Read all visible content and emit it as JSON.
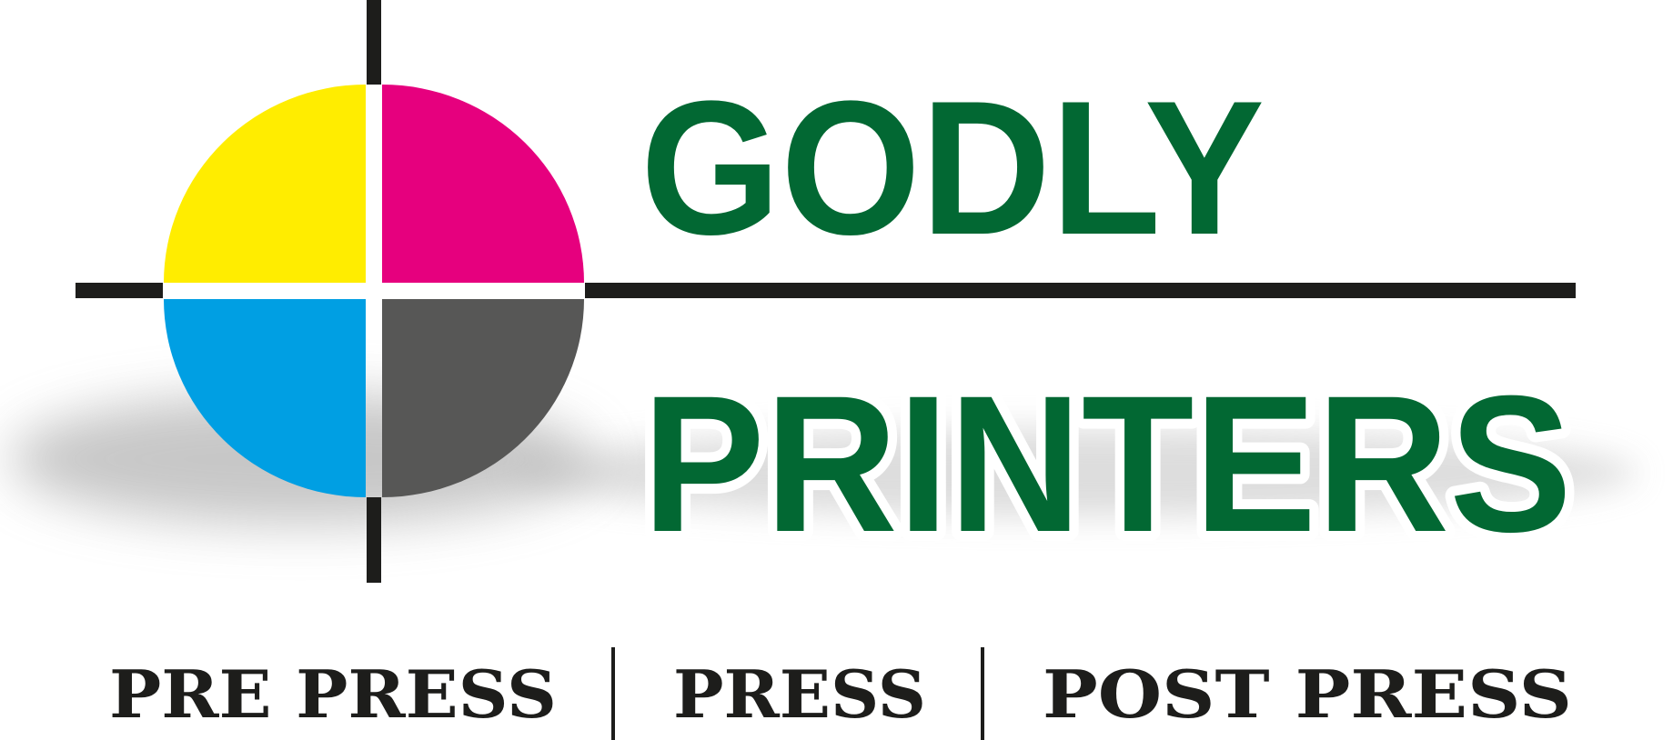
{
  "logo": {
    "line1": "GODLY",
    "line2": "PRINTERS",
    "tagline": {
      "left": "PRE PRESS",
      "middle": "PRESS",
      "right": "POST PRESS"
    }
  },
  "colors": {
    "brand_green": "#026833",
    "cyan": "#009fe3",
    "magenta": "#e6007e",
    "yellow": "#ffed00",
    "key_gray": "#575756",
    "crosshair": "#1d1d1b",
    "tagline_text": "#1d1d1b",
    "background": "#ffffff"
  },
  "icons": {
    "emblem": "cmyk-registration-mark-icon"
  }
}
